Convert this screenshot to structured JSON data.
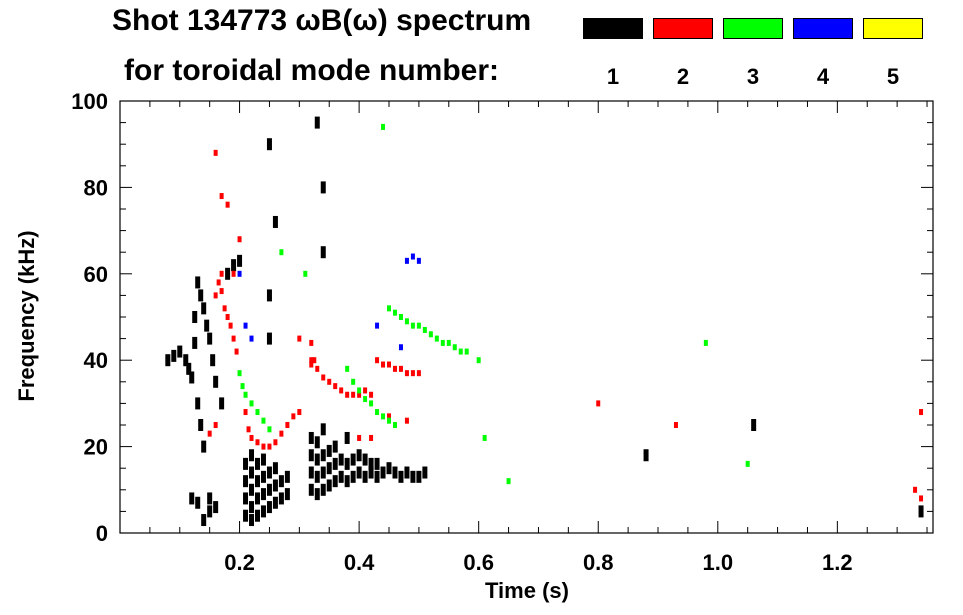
{
  "header": {
    "title_line1": "Shot 134773 ωB(ω) spectrum",
    "title_line2": "for toroidal mode number:"
  },
  "legend": [
    {
      "label": "1",
      "color": "#000000"
    },
    {
      "label": "2",
      "color": "#ff0000"
    },
    {
      "label": "3",
      "color": "#00ff00"
    },
    {
      "label": "4",
      "color": "#0000ff"
    },
    {
      "label": "5",
      "color": "#ffff00"
    }
  ],
  "chart_data": {
    "type": "scatter",
    "title": "Shot 134773 ωB(ω) spectrum",
    "xlabel": "Time (s)",
    "ylabel": "Frequency (kHz)",
    "xlim": [
      0.0,
      1.36
    ],
    "ylim": [
      0,
      100
    ],
    "x_ticks": [
      0.2,
      0.4,
      0.6,
      0.8,
      1.0,
      1.2
    ],
    "x_tick_labels": [
      "0.2",
      "0.4",
      "0.6",
      "0.8",
      "1.0",
      "1.2"
    ],
    "y_ticks": [
      0,
      20,
      40,
      60,
      80,
      100
    ],
    "y_tick_labels": [
      "0",
      "20",
      "40",
      "60",
      "80",
      "100"
    ],
    "grid": false,
    "legend_placement": "top",
    "series": [
      {
        "name": "1",
        "color": "#000000",
        "points": [
          [
            0.08,
            40
          ],
          [
            0.09,
            41
          ],
          [
            0.1,
            42
          ],
          [
            0.11,
            40
          ],
          [
            0.115,
            38
          ],
          [
            0.12,
            36
          ],
          [
            0.125,
            50
          ],
          [
            0.125,
            44
          ],
          [
            0.13,
            58
          ],
          [
            0.13,
            30
          ],
          [
            0.135,
            55
          ],
          [
            0.135,
            25
          ],
          [
            0.14,
            52
          ],
          [
            0.14,
            20
          ],
          [
            0.145,
            48
          ],
          [
            0.15,
            45
          ],
          [
            0.15,
            8
          ],
          [
            0.155,
            40
          ],
          [
            0.16,
            35
          ],
          [
            0.16,
            6
          ],
          [
            0.17,
            30
          ],
          [
            0.18,
            60
          ],
          [
            0.19,
            62
          ],
          [
            0.2,
            63
          ],
          [
            0.14,
            3
          ],
          [
            0.15,
            5
          ],
          [
            0.12,
            8
          ],
          [
            0.13,
            7
          ],
          [
            0.21,
            4
          ],
          [
            0.21,
            8
          ],
          [
            0.21,
            12
          ],
          [
            0.21,
            16
          ],
          [
            0.22,
            3
          ],
          [
            0.22,
            6
          ],
          [
            0.22,
            10
          ],
          [
            0.22,
            14
          ],
          [
            0.22,
            18
          ],
          [
            0.23,
            4
          ],
          [
            0.23,
            8
          ],
          [
            0.23,
            12
          ],
          [
            0.23,
            16
          ],
          [
            0.24,
            5
          ],
          [
            0.24,
            9
          ],
          [
            0.24,
            13
          ],
          [
            0.24,
            17
          ],
          [
            0.25,
            6
          ],
          [
            0.25,
            10
          ],
          [
            0.25,
            14
          ],
          [
            0.26,
            7
          ],
          [
            0.26,
            11
          ],
          [
            0.26,
            15
          ],
          [
            0.27,
            8
          ],
          [
            0.27,
            12
          ],
          [
            0.28,
            9
          ],
          [
            0.28,
            13
          ],
          [
            0.25,
            45
          ],
          [
            0.25,
            55
          ],
          [
            0.26,
            72
          ],
          [
            0.25,
            90
          ],
          [
            0.32,
            10
          ],
          [
            0.32,
            14
          ],
          [
            0.32,
            18
          ],
          [
            0.32,
            22
          ],
          [
            0.33,
            9
          ],
          [
            0.33,
            13
          ],
          [
            0.33,
            17
          ],
          [
            0.33,
            21
          ],
          [
            0.34,
            10
          ],
          [
            0.34,
            14
          ],
          [
            0.34,
            18
          ],
          [
            0.34,
            24
          ],
          [
            0.35,
            11
          ],
          [
            0.35,
            15
          ],
          [
            0.35,
            19
          ],
          [
            0.36,
            12
          ],
          [
            0.36,
            16
          ],
          [
            0.36,
            20
          ],
          [
            0.37,
            13
          ],
          [
            0.37,
            17
          ],
          [
            0.38,
            12
          ],
          [
            0.38,
            16
          ],
          [
            0.38,
            22
          ],
          [
            0.39,
            13
          ],
          [
            0.39,
            17
          ],
          [
            0.4,
            14
          ],
          [
            0.4,
            18
          ],
          [
            0.41,
            13
          ],
          [
            0.41,
            17
          ],
          [
            0.42,
            14
          ],
          [
            0.42,
            16
          ],
          [
            0.43,
            13
          ],
          [
            0.43,
            16
          ],
          [
            0.44,
            14
          ],
          [
            0.45,
            15
          ],
          [
            0.46,
            14
          ],
          [
            0.47,
            13
          ],
          [
            0.48,
            14
          ],
          [
            0.49,
            13
          ],
          [
            0.5,
            13
          ],
          [
            0.51,
            14
          ],
          [
            0.33,
            95
          ],
          [
            0.34,
            80
          ],
          [
            0.34,
            65
          ],
          [
            0.88,
            18
          ],
          [
            1.06,
            25
          ],
          [
            1.34,
            5
          ]
        ]
      },
      {
        "name": "2",
        "color": "#ff0000",
        "points": [
          [
            0.16,
            55
          ],
          [
            0.165,
            58
          ],
          [
            0.17,
            56
          ],
          [
            0.175,
            52
          ],
          [
            0.18,
            50
          ],
          [
            0.185,
            48
          ],
          [
            0.19,
            45
          ],
          [
            0.195,
            42
          ],
          [
            0.17,
            60
          ],
          [
            0.16,
            88
          ],
          [
            0.18,
            76
          ],
          [
            0.17,
            78
          ],
          [
            0.2,
            68
          ],
          [
            0.19,
            60
          ],
          [
            0.16,
            25
          ],
          [
            0.15,
            23
          ],
          [
            0.21,
            28
          ],
          [
            0.215,
            24
          ],
          [
            0.22,
            22
          ],
          [
            0.23,
            21
          ],
          [
            0.24,
            20
          ],
          [
            0.25,
            20
          ],
          [
            0.26,
            21
          ],
          [
            0.27,
            23
          ],
          [
            0.28,
            25
          ],
          [
            0.29,
            27
          ],
          [
            0.3,
            28
          ],
          [
            0.32,
            44
          ],
          [
            0.325,
            40
          ],
          [
            0.33,
            38
          ],
          [
            0.34,
            36
          ],
          [
            0.35,
            35
          ],
          [
            0.36,
            34
          ],
          [
            0.37,
            33
          ],
          [
            0.38,
            32
          ],
          [
            0.39,
            32
          ],
          [
            0.4,
            32
          ],
          [
            0.41,
            33
          ],
          [
            0.42,
            32
          ],
          [
            0.43,
            40
          ],
          [
            0.44,
            39
          ],
          [
            0.45,
            39
          ],
          [
            0.46,
            38
          ],
          [
            0.47,
            38
          ],
          [
            0.48,
            37
          ],
          [
            0.49,
            37
          ],
          [
            0.5,
            37
          ],
          [
            0.4,
            22
          ],
          [
            0.42,
            22
          ],
          [
            0.45,
            27
          ],
          [
            0.48,
            26
          ],
          [
            0.32,
            40
          ],
          [
            0.3,
            45
          ],
          [
            0.32,
            39
          ],
          [
            0.8,
            30
          ],
          [
            0.93,
            25
          ],
          [
            1.34,
            28
          ],
          [
            1.33,
            10
          ],
          [
            1.34,
            8
          ]
        ]
      },
      {
        "name": "3",
        "color": "#00ff00",
        "points": [
          [
            0.2,
            37
          ],
          [
            0.205,
            34
          ],
          [
            0.21,
            32
          ],
          [
            0.22,
            30
          ],
          [
            0.23,
            28
          ],
          [
            0.24,
            26
          ],
          [
            0.25,
            24
          ],
          [
            0.31,
            60
          ],
          [
            0.27,
            65
          ],
          [
            0.38,
            38
          ],
          [
            0.39,
            35
          ],
          [
            0.4,
            33
          ],
          [
            0.41,
            31
          ],
          [
            0.42,
            30
          ],
          [
            0.43,
            28
          ],
          [
            0.44,
            27
          ],
          [
            0.45,
            26
          ],
          [
            0.46,
            25
          ],
          [
            0.45,
            52
          ],
          [
            0.46,
            51
          ],
          [
            0.47,
            50
          ],
          [
            0.48,
            49
          ],
          [
            0.49,
            48
          ],
          [
            0.5,
            48
          ],
          [
            0.51,
            47
          ],
          [
            0.52,
            46
          ],
          [
            0.53,
            45
          ],
          [
            0.54,
            44
          ],
          [
            0.55,
            44
          ],
          [
            0.56,
            43
          ],
          [
            0.57,
            42
          ],
          [
            0.58,
            42
          ],
          [
            0.6,
            40
          ],
          [
            0.61,
            22
          ],
          [
            0.65,
            12
          ],
          [
            0.98,
            44
          ],
          [
            1.05,
            16
          ],
          [
            0.44,
            94
          ]
        ]
      },
      {
        "name": "4",
        "color": "#0000ff",
        "points": [
          [
            0.2,
            60
          ],
          [
            0.21,
            48
          ],
          [
            0.22,
            45
          ],
          [
            0.43,
            48
          ],
          [
            0.48,
            63
          ],
          [
            0.49,
            64
          ],
          [
            0.5,
            63
          ],
          [
            0.47,
            43
          ]
        ]
      },
      {
        "name": "5",
        "color": "#ffff00",
        "points": []
      }
    ]
  }
}
